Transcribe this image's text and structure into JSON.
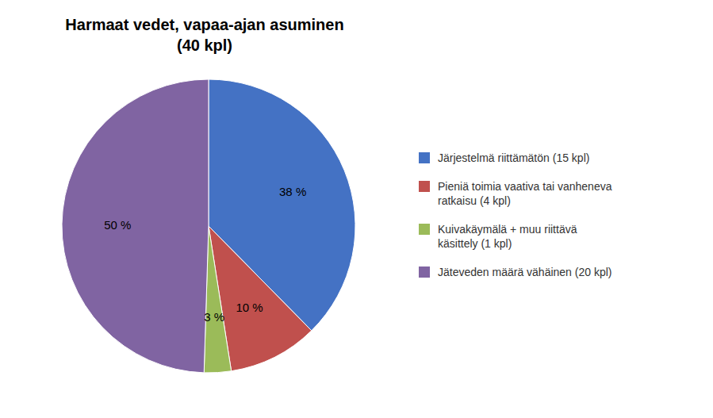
{
  "chart_data": {
    "type": "pie",
    "title": "Harmaat vedet, vapaa-ajan asuminen\n(40 kpl)",
    "categories": [
      "Järjestelmä riittämätön (15 kpl)",
      "Pieniä toimia vaativa tai vanheneva\nratkaisu (4 kpl)",
      "Kuivakäymälä + muu riittävä\nkäsittely (1 kpl)",
      "Jäteveden määrä vähäinen (20 kpl)"
    ],
    "values": [
      38,
      10,
      3,
      50
    ],
    "value_labels": [
      "38 %",
      "10 %",
      "3 %",
      "50 %"
    ],
    "colors": [
      "#4472C4",
      "#C0504D",
      "#9BBB59",
      "#8064A2"
    ],
    "data_labels": true,
    "legend": "right"
  }
}
